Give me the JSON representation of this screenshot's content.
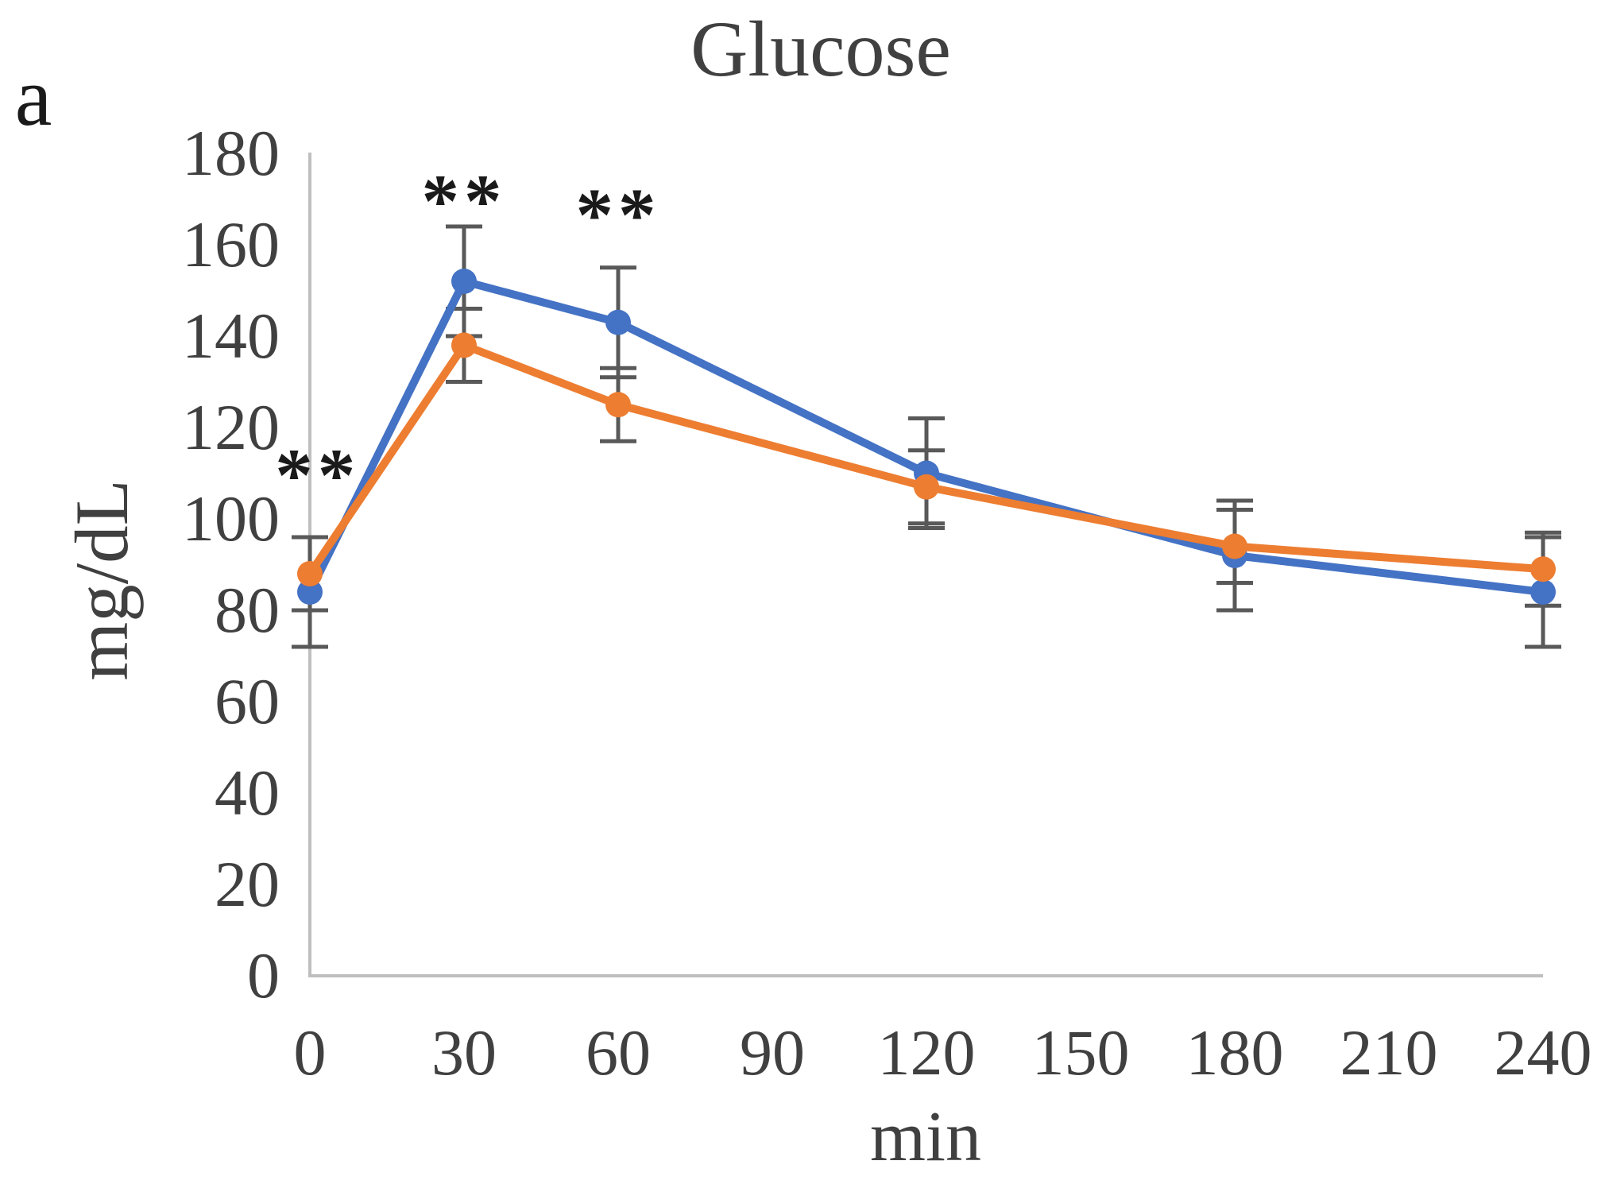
{
  "panel_label": "a",
  "title": "Glucose",
  "x_axis_label": "min",
  "y_axis_label": "mg/dL",
  "chart_data": {
    "type": "line",
    "title": "Glucose",
    "xlabel": "min",
    "ylabel": "mg/dL",
    "x": [
      0,
      30,
      60,
      120,
      180,
      240
    ],
    "x_ticks": [
      0,
      30,
      60,
      90,
      120,
      150,
      180,
      210,
      240
    ],
    "y_ticks": [
      0,
      20,
      40,
      60,
      80,
      100,
      120,
      140,
      160,
      180
    ],
    "xlim": [
      0,
      240
    ],
    "ylim": [
      0,
      180
    ],
    "grid": false,
    "legend": "none",
    "series": [
      {
        "name": "series-blue",
        "color": "#4472C4",
        "values": [
          84,
          152,
          143,
          110,
          92,
          84
        ],
        "error": [
          12,
          12,
          12,
          12,
          12,
          12
        ]
      },
      {
        "name": "series-orange",
        "color": "#ED7D31",
        "values": [
          88,
          138,
          125,
          107,
          94,
          89
        ],
        "error": [
          8,
          8,
          8,
          8,
          8,
          8
        ]
      }
    ],
    "annotations": [
      {
        "text": "**",
        "x": 1.5,
        "y": 112
      },
      {
        "text": "**",
        "x": 30,
        "y": 172
      },
      {
        "text": "**",
        "x": 60,
        "y": 169
      }
    ],
    "colors": {
      "axis_line": "#BFBFBF",
      "error_bar": "#595959",
      "tick_text": "#404040",
      "title_text": "#404040",
      "axis_label_text": "#404040",
      "annotation_text": "#1A1A1A",
      "panel_label_text": "#1A1A1A"
    }
  }
}
